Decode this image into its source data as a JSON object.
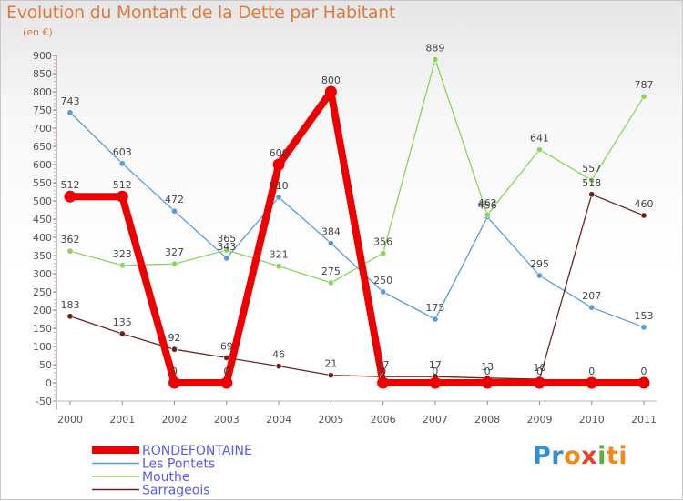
{
  "title": "Evolution du Montant de la Dette par Habitant",
  "subtitle": "(en €)",
  "logo": {
    "p1": "Pr",
    "p2": "o",
    "p3": "x",
    "p4": "i",
    "p5": "ti"
  },
  "chart_data": {
    "type": "line",
    "title": "Evolution du Montant de la Dette par Habitant",
    "ylabel": "(en €)",
    "xlabel": "",
    "categories": [
      "2000",
      "2001",
      "2002",
      "2003",
      "2004",
      "2005",
      "2006",
      "2007",
      "2008",
      "2009",
      "2010",
      "2011"
    ],
    "ylim": [
      -50,
      900
    ],
    "ytick_step": 50,
    "grid": false,
    "legend_position": "bottom-left",
    "series": [
      {
        "name": "RONDEFONTAINE",
        "color": "#ee0000",
        "emphasis": true,
        "values": [
          512,
          512,
          0,
          0,
          600,
          800,
          0,
          0,
          0,
          0,
          0,
          0
        ]
      },
      {
        "name": "Les Pontets",
        "color": "#5b9bd5",
        "values": [
          743,
          603,
          472,
          343,
          510,
          384,
          250,
          175,
          456,
          295,
          207,
          153
        ]
      },
      {
        "name": "Mouthe",
        "color": "#8dd35f",
        "values": [
          362,
          323,
          327,
          365,
          321,
          275,
          356,
          889,
          462,
          641,
          557,
          787
        ]
      },
      {
        "name": "Sarrageois",
        "color": "#6b2424",
        "values": [
          183,
          135,
          92,
          69,
          46,
          21,
          17,
          17,
          13,
          10,
          518,
          460
        ]
      }
    ]
  }
}
